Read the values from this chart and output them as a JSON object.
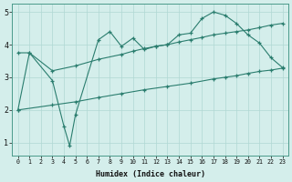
{
  "line1_x": [
    0,
    1,
    3,
    4,
    4.5,
    5,
    7,
    8,
    9,
    10,
    11,
    12,
    13,
    14,
    15,
    16,
    17,
    18,
    19,
    20,
    21,
    22,
    23
  ],
  "line1_y": [
    2.0,
    3.75,
    2.9,
    1.5,
    0.9,
    1.85,
    4.15,
    4.4,
    3.95,
    4.2,
    3.85,
    3.95,
    4.0,
    4.3,
    4.35,
    4.8,
    5.0,
    4.9,
    4.65,
    4.3,
    4.05,
    3.6,
    3.3
  ],
  "line2_x": [
    0,
    1,
    3,
    5,
    7,
    9,
    10,
    11,
    12,
    13,
    14,
    15,
    16,
    17,
    18,
    19,
    20,
    21,
    22,
    23
  ],
  "line2_y": [
    3.75,
    3.75,
    3.2,
    3.35,
    3.55,
    3.7,
    3.8,
    3.88,
    3.95,
    4.0,
    4.08,
    4.15,
    4.22,
    4.3,
    4.35,
    4.4,
    4.45,
    4.52,
    4.6,
    4.65
  ],
  "line3_x": [
    0,
    3,
    5,
    7,
    9,
    11,
    13,
    15,
    17,
    18,
    19,
    20,
    21,
    22,
    23
  ],
  "line3_y": [
    2.0,
    2.15,
    2.25,
    2.38,
    2.5,
    2.62,
    2.72,
    2.82,
    2.95,
    3.0,
    3.05,
    3.12,
    3.18,
    3.22,
    3.28
  ],
  "color": "#2a7d6e",
  "bg_color": "#d4eeeb",
  "grid_color": "#b0d8d4",
  "xlabel": "Humidex (Indice chaleur)",
  "xlim_min": -0.5,
  "xlim_max": 23.5,
  "ylim_min": 0.6,
  "ylim_max": 5.25,
  "yticks": [
    1,
    2,
    3,
    4,
    5
  ],
  "xticks": [
    0,
    1,
    2,
    3,
    4,
    5,
    6,
    7,
    8,
    9,
    10,
    11,
    12,
    13,
    14,
    15,
    16,
    17,
    18,
    19,
    20,
    21,
    22,
    23
  ]
}
